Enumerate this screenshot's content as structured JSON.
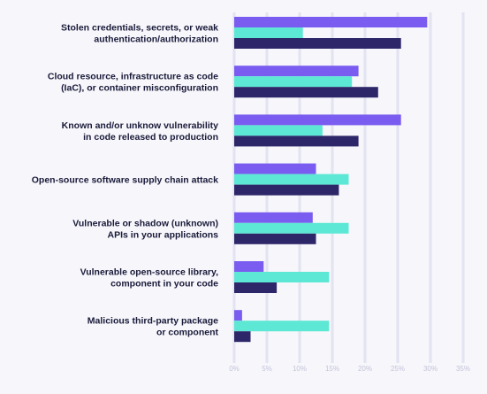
{
  "chart_data": {
    "type": "bar",
    "orientation": "horizontal",
    "categories": [
      [
        "Stolen credentials, secrets, or weak",
        "authentication/authorization"
      ],
      [
        "Cloud resource, infrastructure as code",
        "(IaC), or container misconfiguration"
      ],
      [
        "Known and/or unknow vulnerability",
        "in code released to production"
      ],
      [
        "Open-source software supply chain attack"
      ],
      [
        "Vulnerable or shadow (unknown)",
        "APIs in your applications"
      ],
      [
        "Vulnerable open-source library,",
        "component in your code"
      ],
      [
        "Malicious third-party package",
        "or component"
      ]
    ],
    "series": [
      {
        "color": "#7b5cf0",
        "values": [
          29.5,
          19,
          25.5,
          12.5,
          12,
          4.5,
          1.2
        ]
      },
      {
        "color": "#5ce8d4",
        "values": [
          10.5,
          18,
          13.5,
          17.5,
          17.5,
          14.5,
          14.5
        ]
      },
      {
        "color": "#2d2669",
        "values": [
          25.5,
          22,
          19,
          16,
          12.5,
          6.5,
          2.5
        ]
      }
    ],
    "x_ticks": [
      "0%",
      "5%",
      "10%",
      "15%",
      "20%",
      "25%",
      "30%",
      "35%"
    ],
    "xlim": [
      0,
      35
    ],
    "title": "",
    "xlabel": "",
    "ylabel": "",
    "grid": true,
    "legend": "none"
  }
}
